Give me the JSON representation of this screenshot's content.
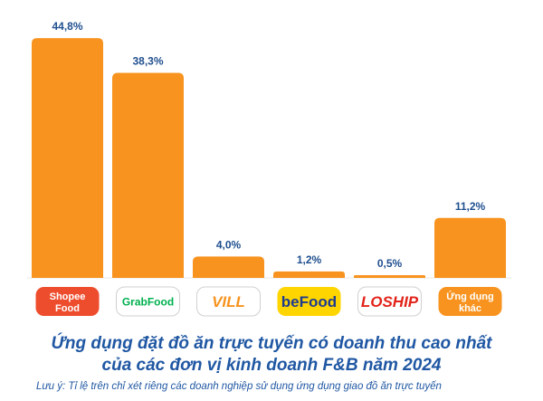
{
  "chart_data": {
    "type": "bar",
    "categories": [
      "ShopeeFood",
      "GrabFood",
      "VILL",
      "beFood",
      "LOSHIP",
      "Ứng dụng khác"
    ],
    "values": [
      44.8,
      38.3,
      4.0,
      1.2,
      0.5,
      11.2
    ],
    "value_labels": [
      "44,8%",
      "38,3%",
      "4,0%",
      "1,2%",
      "0,5%",
      "11,2%"
    ],
    "title": "Ứng dụng đặt đồ ăn trực tuyến có doanh thu cao nhất",
    "subtitle": "của các đơn vị kinh doanh F&B năm 2024",
    "note": "Lưu ý: Tỉ lệ trên chỉ xét riêng các doanh nghiệp sử dụng ứng dụng giao đồ ăn trực tuyến",
    "ylim": [
      0,
      46
    ],
    "grid": false,
    "bar_color": "#f7931e",
    "logos": [
      {
        "name": "shopeefood",
        "lines": [
          "Shopee",
          "Food"
        ],
        "bg": "#ee4d2d",
        "fg": "#ffffff"
      },
      {
        "name": "grabfood",
        "lines": [
          "GrabFood"
        ],
        "bg": "#ffffff",
        "fg": "#00b14f"
      },
      {
        "name": "vill",
        "lines": [
          "VILL"
        ],
        "bg": "#ffffff",
        "fg": "#f7931e"
      },
      {
        "name": "befood",
        "lines": [
          "beFood"
        ],
        "bg": "#ffd500",
        "fg": "#1d3c8f"
      },
      {
        "name": "loship",
        "lines": [
          "LOSHIP"
        ],
        "bg": "#ffffff",
        "fg": "#e2231a"
      },
      {
        "name": "other-apps",
        "lines": [
          "Ứng dụng",
          "khác"
        ],
        "bg": "#f7931e",
        "fg": "#ffffff"
      }
    ]
  }
}
